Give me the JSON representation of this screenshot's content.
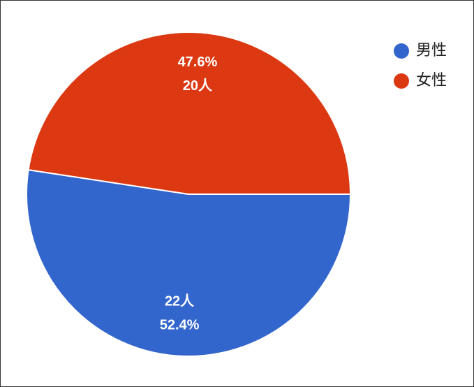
{
  "chart_data": {
    "type": "pie",
    "categories": [
      "男性",
      "女性"
    ],
    "values": [
      52.4,
      47.6
    ],
    "value_labels": [
      "52.4%",
      "47.6%"
    ],
    "counts": [
      22,
      20
    ],
    "count_labels": [
      "22人",
      "20人"
    ],
    "colors": [
      "#3366cc",
      "#dc3912"
    ],
    "legend": "top-right"
  }
}
